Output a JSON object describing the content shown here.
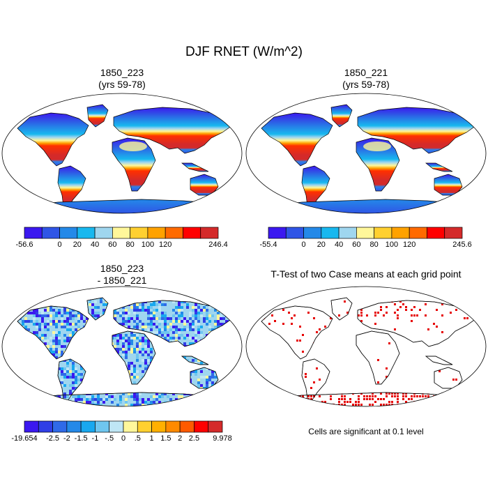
{
  "figure": {
    "title": "DJF RNET (W/m^2)"
  },
  "panels": [
    {
      "title_line1": "1850_223",
      "title_line2": "(yrs 59-78)"
    },
    {
      "title_line1": "1850_221",
      "title_line2": "(yrs 59-78)"
    },
    {
      "title_line1": "1850_223",
      "title_line2": "- 1850_221"
    },
    {
      "title_line1": "T-Test of two Case means at each grid point",
      "title_line2": ""
    }
  ],
  "note": "Cells are significant at 0.1 level",
  "chart_data": [
    {
      "type": "heatmap",
      "title": "1850_223 (yrs 59-78)",
      "colorbar": {
        "colors": [
          "#3b18f0",
          "#2f55e6",
          "#2489e8",
          "#18b8ef",
          "#9fd6ef",
          "#fff79a",
          "#ffd030",
          "#ffa200",
          "#ff6a00",
          "#ff0000",
          "#d42a2a"
        ],
        "labels": [
          "-56.6",
          "0",
          "20",
          "40",
          "60",
          "80",
          "100",
          "120",
          "246.4"
        ],
        "min": -56.6,
        "max": 246.4
      }
    },
    {
      "type": "heatmap",
      "title": "1850_221 (yrs 59-78)",
      "colorbar": {
        "colors": [
          "#3b18f0",
          "#2f55e6",
          "#2489e8",
          "#18b8ef",
          "#9fd6ef",
          "#fff79a",
          "#ffd030",
          "#ffa200",
          "#ff6a00",
          "#ff0000",
          "#d42a2a"
        ],
        "labels": [
          "-55.4",
          "0",
          "20",
          "40",
          "60",
          "80",
          "100",
          "120",
          "245.6"
        ],
        "min": -55.4,
        "max": 245.6
      }
    },
    {
      "type": "heatmap",
      "title": "1850_223 - 1850_221",
      "colorbar": {
        "colors": [
          "#3b18f0",
          "#2f3fe6",
          "#2f6ae8",
          "#2489e8",
          "#18a8ef",
          "#6fc6ef",
          "#bfe6f5",
          "#fff79a",
          "#ffd030",
          "#ffb000",
          "#ff8a00",
          "#ff5a00",
          "#ff0000",
          "#d42a2a"
        ],
        "labels": [
          "-19.654",
          "-2.5",
          "-2",
          "-1.5",
          "-1",
          "-.5",
          "0",
          ".5",
          "1",
          "1.5",
          "2",
          "2.5",
          "9.978"
        ],
        "min": -19.654,
        "max": 9.978
      }
    },
    {
      "type": "heatmap",
      "title": "T-Test of two Case means at each grid point",
      "significance_level": 0.1
    }
  ]
}
